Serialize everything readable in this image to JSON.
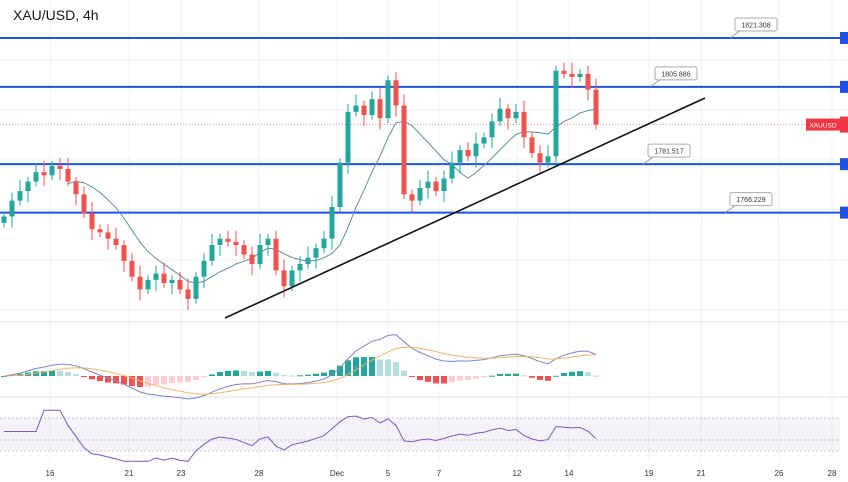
{
  "chart_data": {
    "type": "candlestick",
    "title": "XAU/USD, 4h",
    "symbol_label": "XAUUSD",
    "x_tick_labels": [
      "16",
      "21",
      "23",
      "28",
      "Dec",
      "5",
      "7",
      "12",
      "14",
      "19",
      "21",
      "26",
      "28"
    ],
    "horizontal_levels": [
      {
        "value": 1821.308,
        "label": "1821.308"
      },
      {
        "value": 1805.886,
        "label": "1805.886"
      },
      {
        "value": 1781.517,
        "label": "1781.517"
      },
      {
        "value": 1766.229,
        "label": "1766.229"
      }
    ],
    "trendline": {
      "from": 1735,
      "to": 1805
    },
    "ylim": [
      1725,
      1827
    ],
    "closes": [
      1765,
      1770,
      1773,
      1776,
      1779,
      1778,
      1781,
      1780,
      1776,
      1772,
      1766,
      1761,
      1760,
      1758,
      1756,
      1751,
      1746,
      1742,
      1745,
      1747,
      1744,
      1745,
      1742,
      1739,
      1746,
      1751,
      1756,
      1758,
      1757,
      1756,
      1753,
      1750,
      1756,
      1758,
      1748,
      1743,
      1748,
      1750,
      1752,
      1755,
      1758,
      1768,
      1782,
      1798,
      1800,
      1797,
      1802,
      1796,
      1808,
      1800,
      1772,
      1770,
      1774,
      1776,
      1773,
      1777,
      1782,
      1786,
      1784,
      1788,
      1790,
      1795,
      1799,
      1796,
      1798,
      1790,
      1785,
      1782,
      1784,
      1811,
      1810,
      1809,
      1810,
      1805,
      1794
    ],
    "indicators": [
      "MACD",
      "RSI"
    ],
    "grid": true,
    "colors": {
      "up": "#26a69a",
      "down": "#ef5350",
      "level": "#1e53e5",
      "ma": "#5b8fa8",
      "macd": "#7e86c9",
      "signal": "#f0b46a",
      "rsi": "#7e57c2"
    }
  }
}
